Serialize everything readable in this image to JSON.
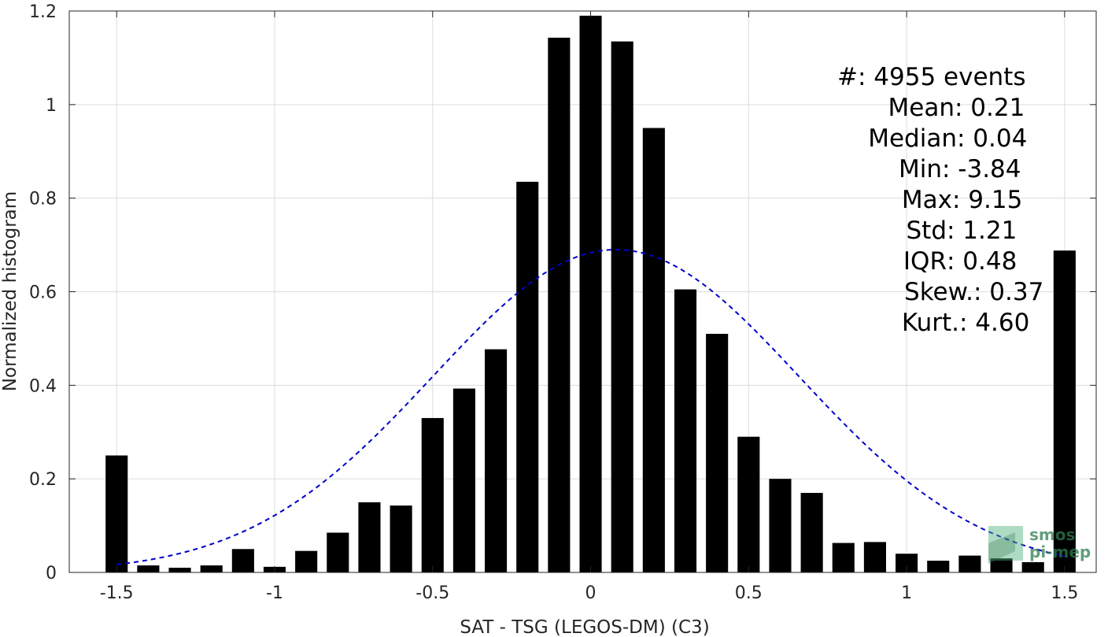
{
  "chart_data": {
    "type": "bar",
    "xlabel": "SAT - TSG (LEGOS-DM) (C3)",
    "ylabel": "Normalized histogram",
    "xlim": [
      -1.65,
      1.6
    ],
    "ylim": [
      0,
      1.2
    ],
    "grid": true,
    "x_ticks": [
      -1.5,
      -1,
      -0.5,
      0,
      0.5,
      1,
      1.5
    ],
    "x_tick_labels": [
      "-1.5",
      "-1",
      "-0.5",
      "0",
      "0.5",
      "1",
      "1.5"
    ],
    "y_ticks": [
      0,
      0.2,
      0.4,
      0.6,
      0.8,
      1,
      1.2
    ],
    "y_tick_labels": [
      "0",
      "0.2",
      "0.4",
      "0.6",
      "0.8",
      "1",
      "1.2"
    ],
    "bin_width": 0.07,
    "bars": {
      "x": [
        -1.5,
        -1.4,
        -1.3,
        -1.2,
        -1.1,
        -1.0,
        -0.9,
        -0.8,
        -0.7,
        -0.6,
        -0.5,
        -0.4,
        -0.3,
        -0.2,
        -0.1,
        0.0,
        0.1,
        0.2,
        0.3,
        0.4,
        0.5,
        0.6,
        0.7,
        0.8,
        0.9,
        1.0,
        1.1,
        1.2,
        1.3,
        1.4,
        1.5
      ],
      "values": [
        0.25,
        0.015,
        0.01,
        0.015,
        0.05,
        0.012,
        0.046,
        0.085,
        0.15,
        0.143,
        0.33,
        0.393,
        0.477,
        0.835,
        1.143,
        1.19,
        1.135,
        0.95,
        0.605,
        0.51,
        0.29,
        0.2,
        0.17,
        0.063,
        0.065,
        0.04,
        0.025,
        0.036,
        0.03,
        0.022,
        0.688
      ],
      "color": "#000000"
    },
    "fit_curve": {
      "style": "dashed",
      "color": "#0000cc",
      "mean": 0.08,
      "std": 0.58,
      "peak": 0.69,
      "x_range": [
        -1.5,
        1.5
      ]
    },
    "stats": [
      {
        "label": "#  ",
        "value": ": 4955 events"
      },
      {
        "label": "Mean ",
        "value": ": 0.21"
      },
      {
        "label": "Median ",
        "value": ": 0.04"
      },
      {
        "label": "Min ",
        "value": ": -3.84"
      },
      {
        "label": "Max ",
        "value": ": 9.15"
      },
      {
        "label": "Std ",
        "value": ": 1.21"
      },
      {
        "label": "IQR ",
        "value": ": 0.48"
      },
      {
        "label": "Skew. ",
        "value": ": 0.37"
      },
      {
        "label": "Kurt. ",
        "value": ": 4.60"
      }
    ]
  },
  "logo": {
    "line1": "smos",
    "line2": "pi-mep",
    "color": "#2e7d4f"
  }
}
